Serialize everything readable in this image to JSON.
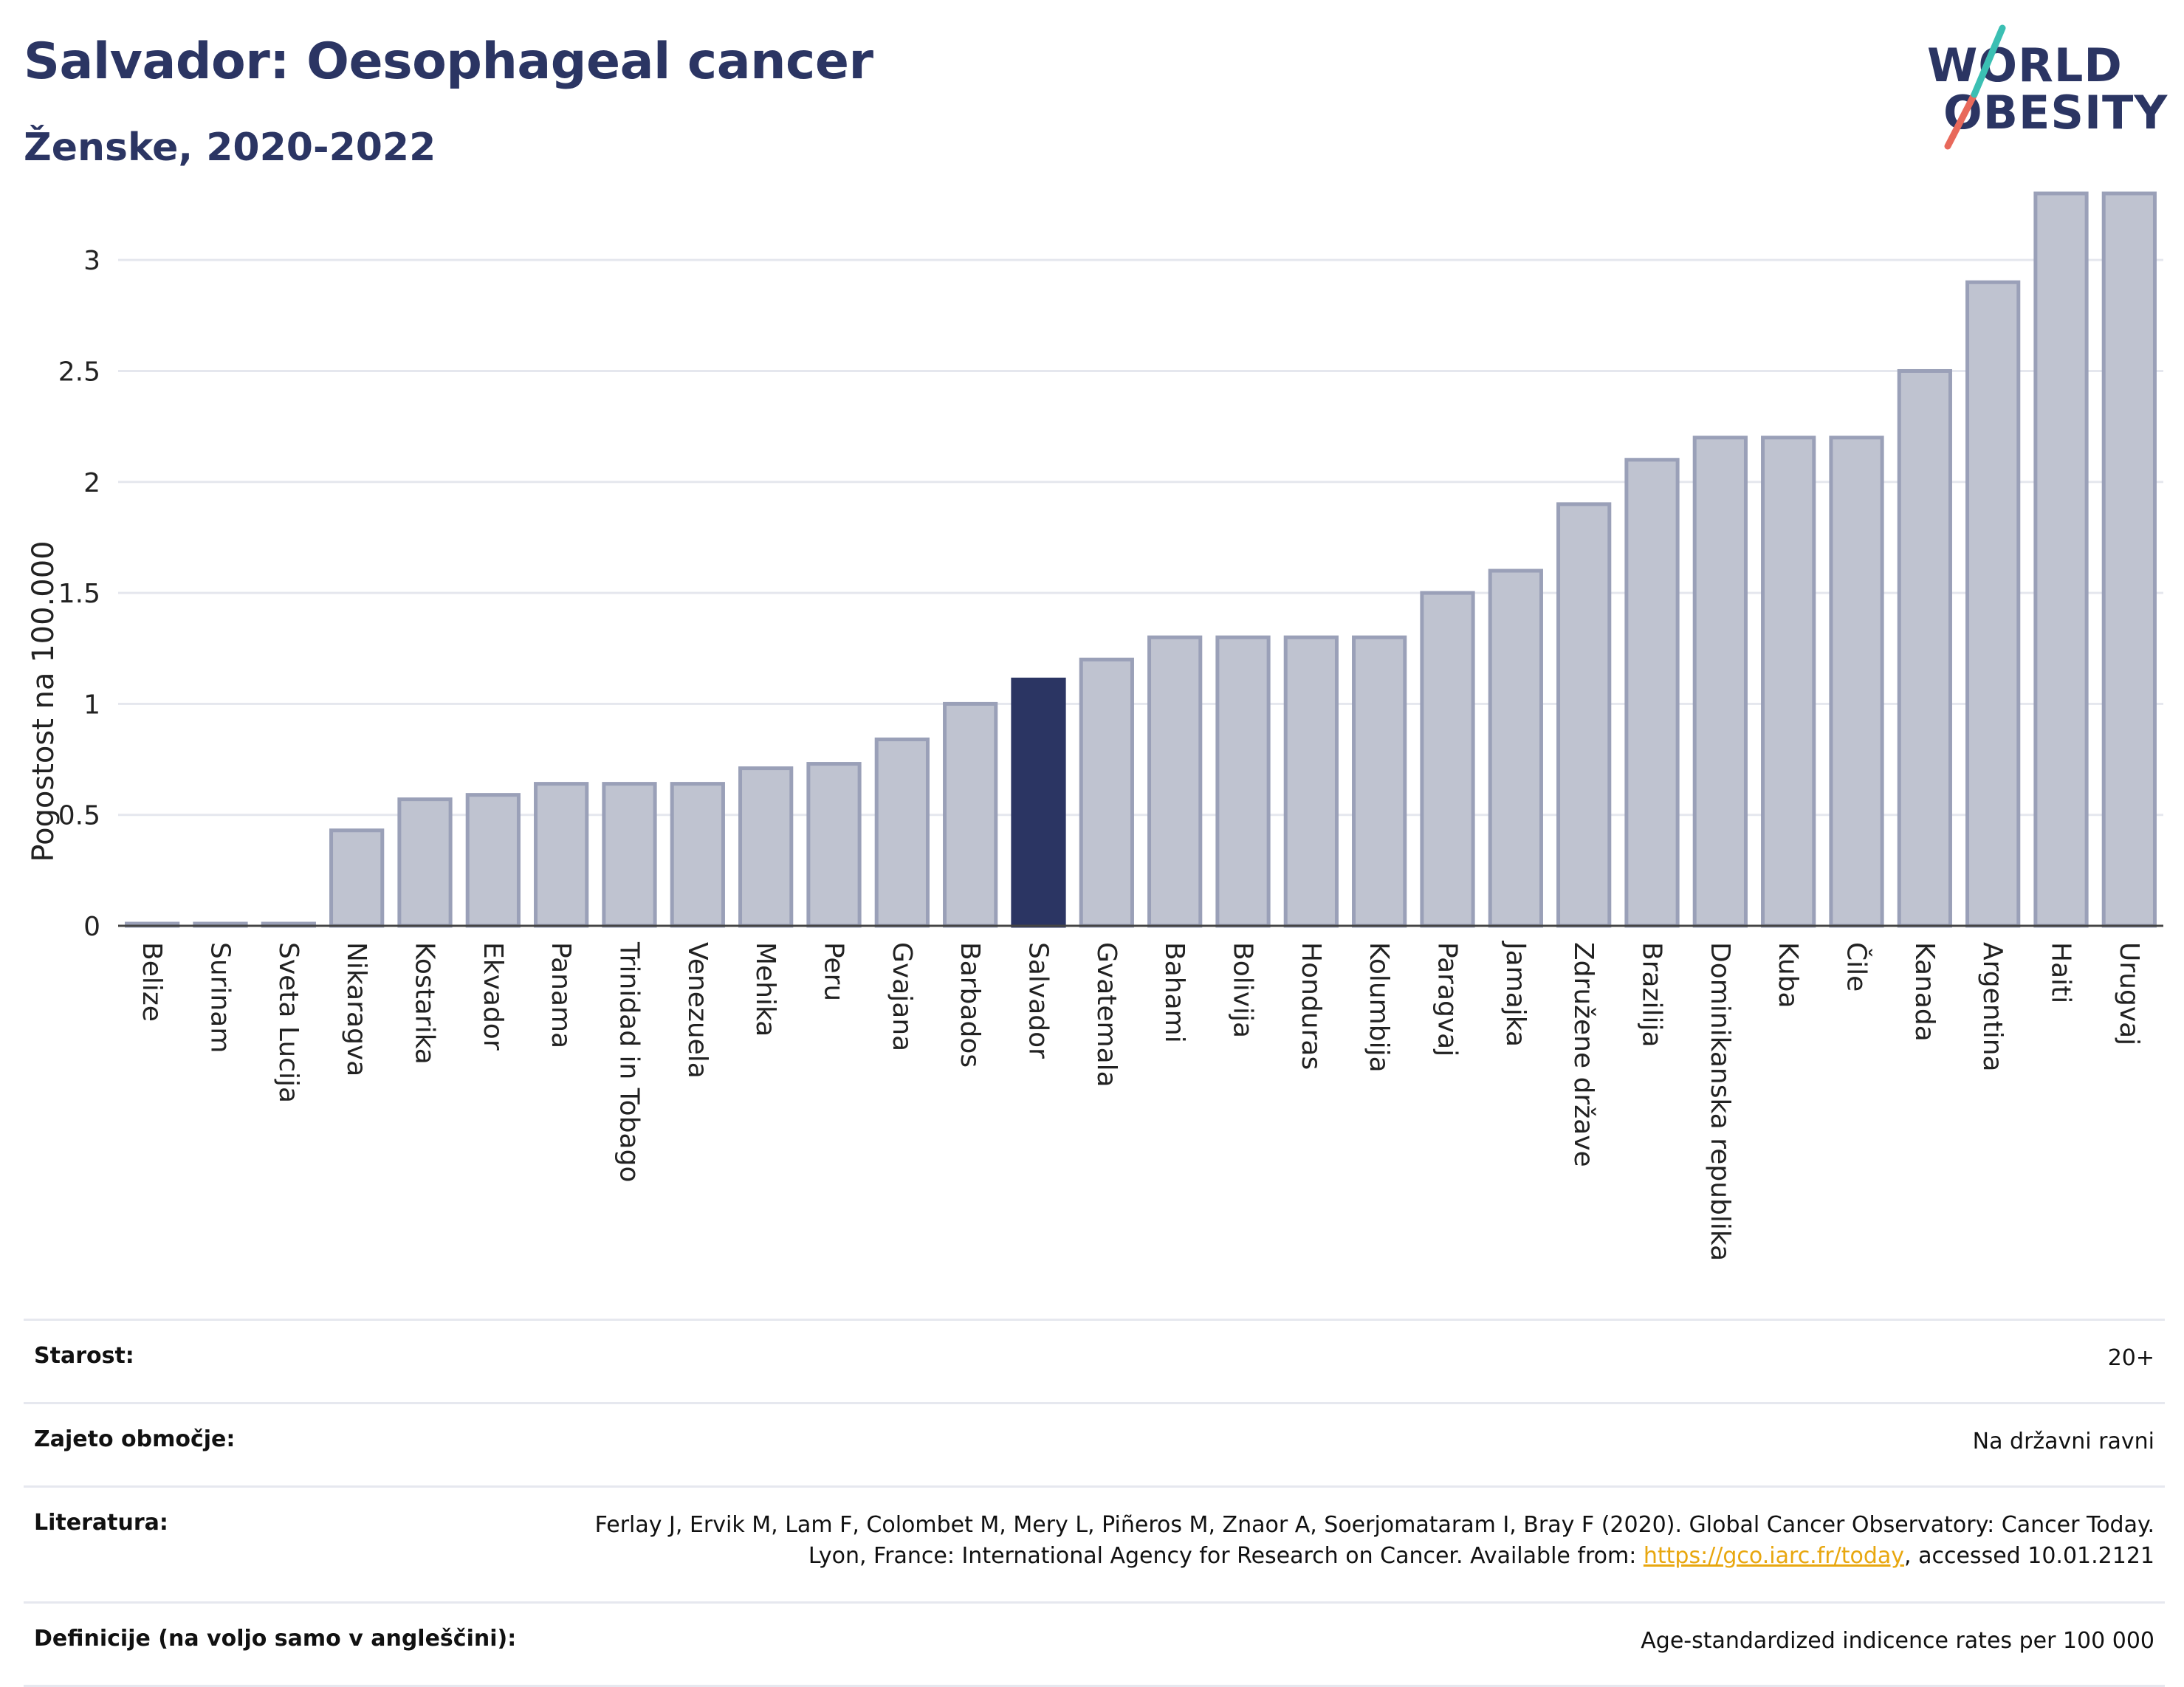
{
  "header": {
    "title": "Salvador: Oesophageal cancer",
    "subtitle": "Ženske, 2020-2022"
  },
  "logo": {
    "line1": "WORLD",
    "line2": "OBESITY",
    "icon": "slash-mark-icon",
    "colors": [
      "#3bbfb3",
      "#e8695b"
    ]
  },
  "colors": {
    "highlight": "#2b3563",
    "bar_fill": "#bfc3d0",
    "bar_stroke": "#9aa0b8",
    "grid": "#e5e7ee",
    "link": "#e8a70f"
  },
  "chart_data": {
    "type": "bar",
    "title": "Salvador: Oesophageal cancer",
    "subtitle": "Ženske, 2020-2022",
    "ylabel": "Pogostost na 100.000",
    "xlabel": "",
    "ylim": [
      0,
      3.3
    ],
    "yticks": [
      0,
      0.5,
      1,
      1.5,
      2,
      2.5,
      3
    ],
    "ytick_labels": [
      "0",
      "0.5",
      "1",
      "1.5",
      "2",
      "2.5",
      "3"
    ],
    "grid": true,
    "highlight": "Salvador",
    "categories": [
      "Belize",
      "Surinam",
      "Sveta Lucija",
      "Nikaragva",
      "Kostarika",
      "Ekvador",
      "Panama",
      "Trinidad in Tobago",
      "Venezuela",
      "Mehika",
      "Peru",
      "Gvajana",
      "Barbados",
      "Salvador",
      "Gvatemala",
      "Bahami",
      "Bolivija",
      "Honduras",
      "Kolumbija",
      "Paragvaj",
      "Jamajka",
      "Združene države",
      "Brazilija",
      "Dominikanska republika",
      "Kuba",
      "Čile",
      "Kanada",
      "Argentina",
      "Haiti",
      "Urugvaj"
    ],
    "values": [
      0.01,
      0.01,
      0.01,
      0.43,
      0.57,
      0.59,
      0.64,
      0.64,
      0.64,
      0.71,
      0.73,
      0.84,
      1.0,
      1.11,
      1.2,
      1.3,
      1.3,
      1.3,
      1.3,
      1.5,
      1.6,
      1.9,
      2.1,
      2.2,
      2.2,
      2.2,
      2.5,
      2.9,
      3.3,
      3.3
    ]
  },
  "info": {
    "age_label": "Starost:",
    "age_value": "20+",
    "area_label": "Zajeto območje:",
    "area_value": "Na državni ravni",
    "ref_label": "Literatura:",
    "ref_text": "Ferlay J, Ervik M, Lam F, Colombet M, Mery L, Piñeros M, Znaor A, Soerjomataram I, Bray F (2020). Global Cancer Observatory: Cancer Today. Lyon, France: International Agency for Research on Cancer. Available from: ",
    "ref_link": "https://gco.iarc.fr/today",
    "ref_suffix": ", accessed 10.01.2121",
    "def_label": "Definicije (na voljo samo v angleščini):",
    "def_value": "Age-standardized indicence rates per 100 000"
  }
}
